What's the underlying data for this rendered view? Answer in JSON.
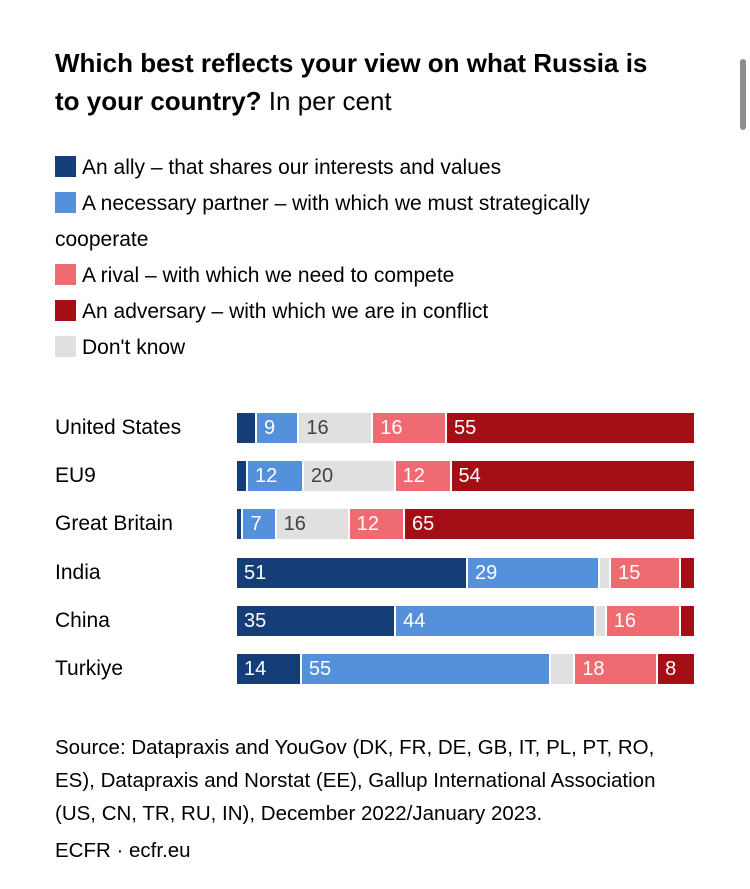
{
  "title": {
    "line1_bold": "Which best reflects your view on what Russia is",
    "line2_bold": "to your country?",
    "line2_normal": "In per cent"
  },
  "legend": {
    "items": [
      {
        "label": "An ally – that shares our interests and values",
        "color": "#153d78",
        "icon": "legend-swatch-ally"
      },
      {
        "label": "A necessary partner – with which we must strategically cooperate",
        "color": "#5590db",
        "icon": "legend-swatch-partner"
      },
      {
        "label": "A rival – with which we need to compete",
        "color": "#ef6b71",
        "icon": "legend-swatch-rival"
      },
      {
        "label": "An adversary – with which we are in conflict",
        "color": "#a40e15",
        "icon": "legend-swatch-adversary"
      },
      {
        "label": "Don't know",
        "color": "#e0e0e0",
        "icon": "legend-swatch-dont-know"
      }
    ]
  },
  "chart_data": {
    "type": "bar",
    "stacked": true,
    "orientation": "horizontal",
    "unit": "per cent",
    "xlim": [
      0,
      100
    ],
    "grid": false,
    "legend_position": "top",
    "categories": [
      "United States",
      "EU9",
      "Great Britain",
      "India",
      "China",
      "Turkiye"
    ],
    "series": [
      {
        "key": "ally",
        "name": "An ally – that shares our interests and values",
        "color": "#153d78",
        "values": [
          4,
          2,
          1,
          51,
          35,
          14
        ]
      },
      {
        "key": "partner",
        "name": "A necessary partner – with which we must strategically cooperate",
        "color": "#5590db",
        "values": [
          9,
          12,
          7,
          29,
          44,
          55
        ]
      },
      {
        "key": "dont-know",
        "name": "Don't know",
        "color": "#e0e0e0",
        "values": [
          16,
          20,
          16,
          2,
          2,
          5
        ]
      },
      {
        "key": "rival",
        "name": "A rival – with which we need to compete",
        "color": "#ef6b71",
        "values": [
          16,
          12,
          12,
          15,
          16,
          18
        ]
      },
      {
        "key": "adversary",
        "name": "An adversary – with which we are in conflict",
        "color": "#a40e15",
        "values": [
          55,
          54,
          65,
          3,
          3,
          8
        ]
      }
    ],
    "label_min_value": 7,
    "group_break_index": 3
  },
  "source": {
    "lines": [
      "Source: Datapraxis and YouGov (DK, FR, DE, GB, IT, PL, PT, RO,",
      "ES), Datapraxis and Norstat (EE), Gallup International Association",
      "(US, CN, TR, RU, IN), December 2022/January 2023."
    ],
    "footer": "ECFR · ecfr.eu"
  }
}
